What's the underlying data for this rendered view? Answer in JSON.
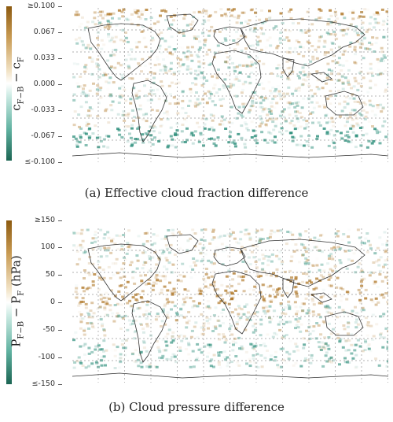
{
  "panels": [
    {
      "id": "a",
      "ylabel": "c<sub>F−B</sub> − c<sub>F</sub>",
      "ylabel_text": "cF−B − cF",
      "caption": "(a) Effective cloud fraction difference",
      "ticks": [
        "≥0.100",
        "0.067",
        "0.033",
        "0.000",
        "-0.033",
        "-0.067",
        "≤-0.100"
      ],
      "colormap": {
        "negative": "#1e6b5a",
        "zero": "#ffffff",
        "positive": "#9a6414"
      }
    },
    {
      "id": "b",
      "ylabel_text": "PF−B − PF (hPa)",
      "caption": "(b) Cloud pressure difference",
      "ticks": [
        "≥150",
        "100",
        "50",
        "0",
        "-50",
        "-100",
        "≤-150"
      ],
      "colormap": {
        "negative": "#1e6b5a",
        "zero": "#ffffff",
        "positive": "#9a6414"
      }
    }
  ]
}
